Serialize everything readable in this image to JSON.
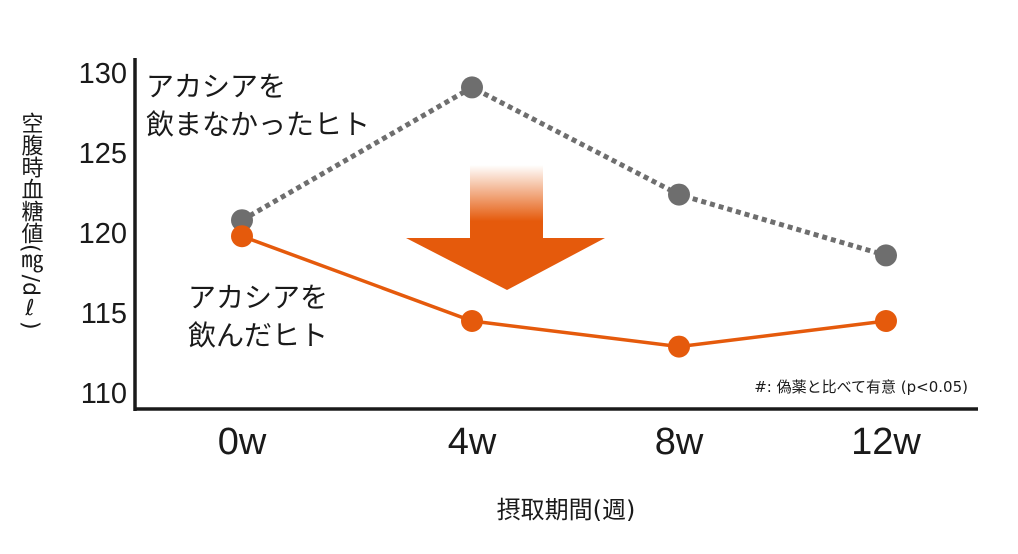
{
  "chart_data": {
    "type": "line",
    "categories": [
      "0w",
      "4w",
      "8w",
      "12w"
    ],
    "ylim": [
      110,
      130
    ],
    "yticks": [
      "110",
      "115",
      "120",
      "125",
      "130"
    ],
    "ylabel": "空腹時血糖値(㎎/dℓ)",
    "xlabel": "摂取期間(週)",
    "note": "#: 偽薬と比べて有意 (p<0.05)",
    "grid": false,
    "series": [
      {
        "name": "アカシアを飲まなかったヒト",
        "label_lines": [
          "アカシアを",
          "飲まなかったヒト"
        ],
        "values": [
          120.8,
          129.1,
          122.4,
          118.6
        ],
        "color": "#6e6e6e",
        "style": "dotted"
      },
      {
        "name": "アカシアを飲んだヒト",
        "label_lines": [
          "アカシアを",
          "飲んだヒト"
        ],
        "values": [
          119.8,
          114.5,
          112.9,
          114.5
        ],
        "color": "#e55a0c",
        "style": "solid"
      }
    ],
    "arrow_color": "#e55a0c"
  }
}
